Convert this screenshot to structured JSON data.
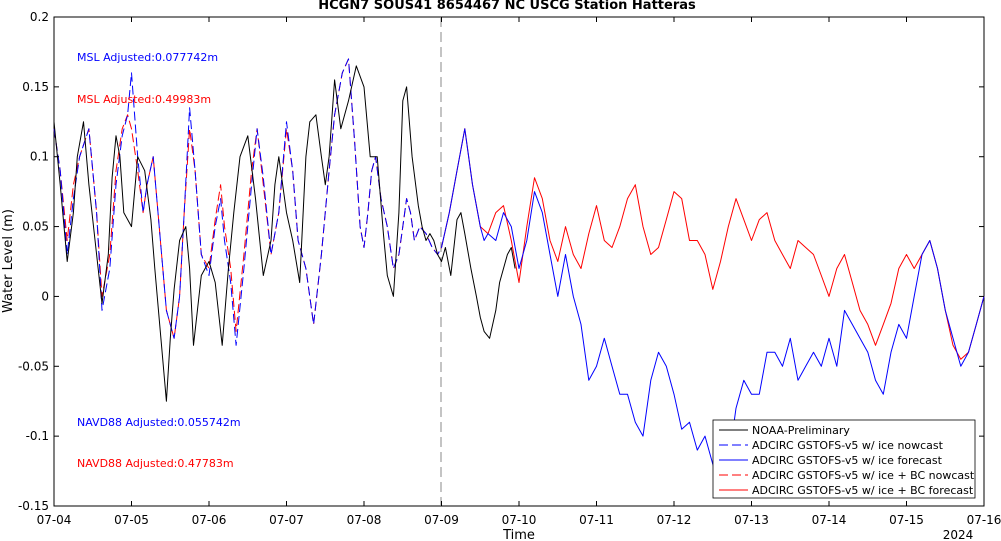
{
  "chart_data": {
    "type": "line",
    "title": "HCGN7 SOUS41 8654467 NC USCG Station Hatteras",
    "xlabel": "Time",
    "ylabel": "Water Level (m)",
    "year_label": "2024",
    "x_ticks": [
      "07-04",
      "07-05",
      "07-06",
      "07-07",
      "07-08",
      "07-09",
      "07-10",
      "07-11",
      "07-12",
      "07-13",
      "07-14",
      "07-15",
      "07-16"
    ],
    "x_range": [
      "07-04 00:00",
      "07-16 00:00"
    ],
    "y_ticks": [
      "-0.15",
      "-0.1",
      "-0.05",
      "0",
      "0.05",
      "0.1",
      "0.15",
      "0.2"
    ],
    "ylim": [
      -0.15,
      0.2
    ],
    "nowcast_forecast_boundary": "07-09 00:00",
    "grid": false,
    "legend_position": "bottom-right",
    "annotations": [
      {
        "text": "MSL Adjusted:0.077742m",
        "color": "#0000ff"
      },
      {
        "text": "MSL Adjusted:0.49983m",
        "color": "#ff0000"
      },
      {
        "text": "NAVD88 Adjusted:0.055742m",
        "color": "#0000ff"
      },
      {
        "text": "NAVD88 Adjusted:0.47783m",
        "color": "#ff0000"
      }
    ],
    "series": [
      {
        "name": "NOAA-Preliminary",
        "color": "#000000",
        "dash": "solid",
        "x": [
          0,
          0.08,
          0.17,
          0.25,
          0.3,
          0.38,
          0.45,
          0.55,
          0.62,
          0.7,
          0.75,
          0.8,
          0.85,
          0.9,
          1.0,
          1.08,
          1.17,
          1.25,
          1.3,
          1.38,
          1.45,
          1.5,
          1.55,
          1.62,
          1.7,
          1.75,
          1.8,
          1.85,
          1.9,
          2.0,
          2.08,
          2.17,
          2.25,
          2.32,
          2.4,
          2.5,
          2.6,
          2.7,
          2.8,
          2.85,
          2.9,
          3.0,
          3.08,
          3.17,
          3.25,
          3.3,
          3.38,
          3.45,
          3.5,
          3.55,
          3.62,
          3.7,
          3.8,
          3.9,
          4.0,
          4.08,
          4.17,
          4.25,
          4.3,
          4.38,
          4.45,
          4.5,
          4.55,
          4.62,
          4.7,
          4.75,
          4.8,
          4.85,
          4.9,
          4.95,
          5.0,
          5.05,
          5.12,
          5.2,
          5.25,
          5.3,
          5.38,
          5.45,
          5.5,
          5.55,
          5.62,
          5.7,
          5.75,
          5.8,
          5.85,
          5.9,
          5.95
        ],
        "y": [
          0.125,
          0.08,
          0.025,
          0.06,
          0.1,
          0.125,
          0.08,
          0.03,
          -0.005,
          0.03,
          0.085,
          0.115,
          0.1,
          0.06,
          0.05,
          0.1,
          0.09,
          0.055,
          0.02,
          -0.03,
          -0.075,
          -0.03,
          0.005,
          0.04,
          0.05,
          0.02,
          -0.035,
          -0.01,
          0.015,
          0.025,
          0.01,
          -0.035,
          0.02,
          0.06,
          0.1,
          0.115,
          0.07,
          0.015,
          0.04,
          0.08,
          0.1,
          0.06,
          0.04,
          0.01,
          0.1,
          0.125,
          0.13,
          0.1,
          0.08,
          0.1,
          0.155,
          0.12,
          0.14,
          0.165,
          0.15,
          0.1,
          0.1,
          0.045,
          0.015,
          0,
          0.06,
          0.14,
          0.15,
          0.1,
          0.065,
          0.05,
          0.04,
          0.045,
          0.04,
          0.03,
          0.025,
          0.035,
          0.015,
          0.055,
          0.06,
          0.045,
          0.02,
          0.0,
          -0.015,
          -0.025,
          -0.03,
          -0.01,
          0.01,
          0.02,
          0.03,
          0.035,
          0.02
        ]
      },
      {
        "name": "ADCIRC GSTOFS-v5 w/ ice nowcast",
        "color": "#0000ff",
        "dash": "dashed",
        "x": [
          0,
          0.08,
          0.17,
          0.25,
          0.33,
          0.45,
          0.55,
          0.62,
          0.72,
          0.8,
          0.88,
          0.95,
          1.0,
          1.08,
          1.15,
          1.2,
          1.28,
          1.35,
          1.45,
          1.55,
          1.62,
          1.68,
          1.75,
          1.82,
          1.9,
          2.0,
          2.08,
          2.15,
          2.2,
          2.28,
          2.35,
          2.45,
          2.55,
          2.62,
          2.7,
          2.8,
          2.9,
          3.0,
          3.08,
          3.15,
          3.25,
          3.35,
          3.45,
          3.55,
          3.62,
          3.72,
          3.8,
          3.88,
          3.95,
          4.0,
          4.05,
          4.1,
          4.15,
          4.22,
          4.3,
          4.38,
          4.45,
          4.5,
          4.55,
          4.6,
          4.65,
          4.72,
          4.8,
          4.88,
          4.95,
          5.0
        ],
        "y": [
          0.12,
          0.09,
          0.03,
          0.07,
          0.1,
          0.12,
          0.06,
          -0.01,
          0.02,
          0.08,
          0.115,
          0.13,
          0.16,
          0.1,
          0.06,
          0.08,
          0.1,
          0.055,
          -0.01,
          -0.03,
          0.0,
          0.06,
          0.135,
          0.09,
          0.03,
          0.015,
          0.05,
          0.07,
          0.04,
          0.01,
          -0.035,
          0.02,
          0.08,
          0.12,
          0.085,
          0.03,
          0.06,
          0.125,
          0.09,
          0.04,
          0.02,
          -0.02,
          0.03,
          0.09,
          0.13,
          0.16,
          0.17,
          0.11,
          0.05,
          0.035,
          0.06,
          0.09,
          0.1,
          0.07,
          0.05,
          0.02,
          0.03,
          0.05,
          0.07,
          0.06,
          0.04,
          0.05,
          0.045,
          0.035,
          0.03,
          0.035
        ]
      },
      {
        "name": "ADCIRC GSTOFS-v5 w/ ice forecast",
        "color": "#0000ff",
        "dash": "solid",
        "x": [
          5.0,
          5.1,
          5.2,
          5.3,
          5.4,
          5.5,
          5.55,
          5.6,
          5.7,
          5.8,
          5.9,
          6.0,
          6.1,
          6.2,
          6.3,
          6.4,
          6.5,
          6.6,
          6.7,
          6.8,
          6.9,
          7.0,
          7.1,
          7.2,
          7.3,
          7.4,
          7.5,
          7.6,
          7.7,
          7.8,
          7.9,
          8.0,
          8.1,
          8.2,
          8.3,
          8.4,
          8.5,
          8.6,
          8.7,
          8.8,
          8.9,
          9.0,
          9.1,
          9.2,
          9.3,
          9.4,
          9.5,
          9.6,
          9.7,
          9.8,
          9.9,
          10.0,
          10.1,
          10.2,
          10.3,
          10.4,
          10.5,
          10.6,
          10.7,
          10.8,
          10.9,
          11.0,
          11.1,
          11.2,
          11.3,
          11.4,
          11.5,
          11.6,
          11.7,
          11.8,
          11.9,
          12.0
        ],
        "y": [
          0.035,
          0.06,
          0.09,
          0.12,
          0.08,
          0.05,
          0.04,
          0.045,
          0.04,
          0.06,
          0.05,
          0.02,
          0.04,
          0.075,
          0.06,
          0.03,
          0.0,
          0.03,
          0.0,
          -0.02,
          -0.06,
          -0.05,
          -0.03,
          -0.05,
          -0.07,
          -0.07,
          -0.09,
          -0.1,
          -0.06,
          -0.04,
          -0.05,
          -0.07,
          -0.095,
          -0.09,
          -0.11,
          -0.1,
          -0.12,
          -0.14,
          -0.12,
          -0.08,
          -0.06,
          -0.07,
          -0.07,
          -0.04,
          -0.04,
          -0.05,
          -0.03,
          -0.06,
          -0.05,
          -0.04,
          -0.05,
          -0.03,
          -0.05,
          -0.01,
          -0.02,
          -0.03,
          -0.04,
          -0.06,
          -0.07,
          -0.04,
          -0.02,
          -0.03,
          0.0,
          0.03,
          0.04,
          0.02,
          -0.01,
          -0.03,
          -0.05,
          -0.04,
          -0.02,
          0.0
        ]
      },
      {
        "name": "ADCIRC GSTOFS-v5 w/ ice + BC nowcast",
        "color": "#ff0000",
        "dash": "dashed",
        "x": [
          0,
          0.08,
          0.17,
          0.25,
          0.33,
          0.45,
          0.55,
          0.62,
          0.72,
          0.8,
          0.88,
          0.95,
          1.0,
          1.08,
          1.15,
          1.2,
          1.28,
          1.35,
          1.45,
          1.55,
          1.62,
          1.68,
          1.75,
          1.82,
          1.9,
          2.0,
          2.08,
          2.15,
          2.2,
          2.28,
          2.35,
          2.45,
          2.55,
          2.62,
          2.7,
          2.8,
          2.9,
          3.0,
          3.08,
          3.15,
          3.25,
          3.35,
          3.45,
          3.55,
          3.62,
          3.72,
          3.8,
          3.88,
          3.95,
          4.0,
          4.05,
          4.1,
          4.15,
          4.22,
          4.3,
          4.38,
          4.45,
          4.5,
          4.55,
          4.6,
          4.65,
          4.72,
          4.8,
          4.88,
          4.95,
          5.0
        ],
        "y": [
          0.12,
          0.09,
          0.04,
          0.08,
          0.1,
          0.12,
          0.06,
          0.0,
          0.03,
          0.09,
          0.12,
          0.13,
          0.12,
          0.09,
          0.06,
          0.08,
          0.1,
          0.055,
          -0.01,
          -0.03,
          0.0,
          0.06,
          0.12,
          0.09,
          0.03,
          0.02,
          0.055,
          0.08,
          0.05,
          0.02,
          -0.025,
          0.03,
          0.09,
          0.12,
          0.08,
          0.03,
          0.06,
          0.12,
          0.09,
          0.04,
          0.02,
          -0.02,
          0.03,
          0.09,
          0.13,
          0.16,
          0.17,
          0.11,
          0.05,
          0.035,
          0.06,
          0.09,
          0.1,
          0.07,
          0.05,
          0.02,
          0.03,
          0.05,
          0.07,
          0.06,
          0.04,
          0.05,
          0.045,
          0.035,
          0.03,
          0.035
        ]
      },
      {
        "name": "ADCIRC GSTOFS-v5 w/ ice + BC forecast",
        "color": "#ff0000",
        "dash": "solid",
        "x": [
          5.0,
          5.1,
          5.2,
          5.3,
          5.4,
          5.5,
          5.6,
          5.7,
          5.8,
          5.9,
          6.0,
          6.1,
          6.2,
          6.3,
          6.4,
          6.5,
          6.6,
          6.7,
          6.8,
          6.9,
          7.0,
          7.1,
          7.2,
          7.3,
          7.4,
          7.5,
          7.6,
          7.7,
          7.8,
          7.9,
          8.0,
          8.1,
          8.2,
          8.3,
          8.4,
          8.5,
          8.6,
          8.7,
          8.8,
          8.9,
          9.0,
          9.1,
          9.2,
          9.3,
          9.4,
          9.5,
          9.6,
          9.7,
          9.8,
          9.9,
          10.0,
          10.1,
          10.2,
          10.3,
          10.4,
          10.5,
          10.6,
          10.7,
          10.8,
          10.9,
          11.0,
          11.1,
          11.2,
          11.3,
          11.4,
          11.5,
          11.6,
          11.7,
          11.8,
          11.9,
          12.0
        ],
        "y": [
          0.035,
          0.06,
          0.09,
          0.12,
          0.08,
          0.05,
          0.045,
          0.06,
          0.065,
          0.04,
          0.01,
          0.05,
          0.085,
          0.07,
          0.04,
          0.025,
          0.05,
          0.03,
          0.02,
          0.045,
          0.065,
          0.04,
          0.035,
          0.05,
          0.07,
          0.08,
          0.05,
          0.03,
          0.035,
          0.055,
          0.075,
          0.07,
          0.04,
          0.04,
          0.03,
          0.005,
          0.025,
          0.05,
          0.07,
          0.055,
          0.04,
          0.055,
          0.06,
          0.04,
          0.03,
          0.02,
          0.04,
          0.035,
          0.03,
          0.015,
          0.0,
          0.02,
          0.03,
          0.01,
          -0.01,
          -0.02,
          -0.035,
          -0.02,
          -0.005,
          0.02,
          0.03,
          0.02,
          0.03,
          0.04,
          0.02,
          -0.01,
          -0.035,
          -0.045,
          -0.04,
          -0.02,
          0.0
        ]
      }
    ]
  }
}
